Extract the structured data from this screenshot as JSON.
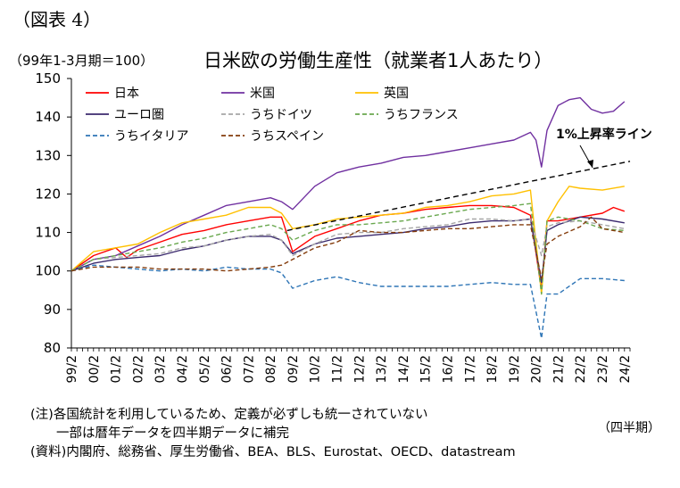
{
  "figure_label": "（図表 4）",
  "unit_label": "（99年1-3月期＝100）",
  "period_label": "（四半期）",
  "notes": [
    "(注)各国統計を利用しているため、定義が必ずしも統一されていない",
    "　　一部は暦年データを四半期データに補完",
    "(資料)内閣府、総務省、厚生労働省、BEA、BLS、Eurostat、OECD、datastream"
  ],
  "chart_data": {
    "type": "line",
    "title": "日米欧の労働生産性（就業者1人あたり）",
    "ylim": [
      80,
      150
    ],
    "yticks": [
      80,
      90,
      100,
      110,
      120,
      130,
      140,
      150
    ],
    "xlim": [
      1999.125,
      2024.375
    ],
    "xtick_labels": [
      "99/2",
      "00/2",
      "01/2",
      "02/2",
      "03/2",
      "04/2",
      "05/2",
      "06/2",
      "07/2",
      "08/2",
      "09/2",
      "10/2",
      "11/2",
      "12/2",
      "13/2",
      "14/2",
      "15/2",
      "16/2",
      "17/2",
      "18/2",
      "19/2",
      "20/2",
      "21/2",
      "22/2",
      "23/2",
      "24/2"
    ],
    "grid": false,
    "legend_position": "top-left",
    "annotation": "1%上昇率ライン",
    "series": [
      {
        "name": "日本",
        "color": "#ff0000",
        "dash": "solid",
        "x": [
          1999.125,
          2000.125,
          2001.125,
          2001.625,
          2002.125,
          2003.125,
          2004.125,
          2005.125,
          2006.125,
          2007.125,
          2008.125,
          2008.625,
          2009.125,
          2010.125,
          2011.125,
          2012.125,
          2013.125,
          2014.125,
          2015.125,
          2016.125,
          2017.125,
          2018.125,
          2019.125,
          2019.875,
          2020.375,
          2020.625,
          2021.125,
          2022.125,
          2023.125,
          2023.625,
          2024.125
        ],
        "y": [
          100,
          104,
          106,
          103.5,
          105.5,
          107.5,
          109.5,
          110.5,
          112,
          113,
          114,
          114,
          105,
          109,
          111,
          113,
          114.5,
          115,
          116,
          116.5,
          117,
          117,
          116.5,
          114.5,
          95,
          113,
          113,
          114,
          115,
          116.5,
          115.5
        ]
      },
      {
        "name": "米国",
        "color": "#7030a0",
        "dash": "solid",
        "x": [
          1999.125,
          2000.125,
          2001.125,
          2002.125,
          2003.125,
          2004.125,
          2005.125,
          2006.125,
          2007.125,
          2008.125,
          2008.625,
          2009.125,
          2010.125,
          2011.125,
          2012.125,
          2013.125,
          2014.125,
          2015.125,
          2016.125,
          2017.125,
          2018.125,
          2019.125,
          2019.875,
          2020.125,
          2020.375,
          2020.625,
          2021.125,
          2021.625,
          2022.125,
          2022.625,
          2023.125,
          2023.625,
          2024.125
        ],
        "y": [
          100,
          103,
          104,
          106.5,
          109,
          112,
          114.5,
          117,
          118,
          119,
          118,
          116,
          122,
          125.5,
          127,
          128,
          129.5,
          130,
          131,
          132,
          133,
          134,
          136,
          134,
          127,
          136.5,
          143,
          144.5,
          145,
          142,
          141,
          141.5,
          144
        ]
      },
      {
        "name": "英国",
        "color": "#ffc000",
        "dash": "solid",
        "x": [
          1999.125,
          2000.125,
          2001.125,
          2002.125,
          2003.125,
          2004.125,
          2005.125,
          2006.125,
          2007.125,
          2008.125,
          2008.625,
          2009.125,
          2010.125,
          2011.125,
          2012.125,
          2013.125,
          2014.125,
          2015.125,
          2016.125,
          2017.125,
          2018.125,
          2019.125,
          2019.875,
          2020.375,
          2020.625,
          2021.125,
          2021.625,
          2022.125,
          2023.125,
          2024.125
        ],
        "y": [
          100,
          105,
          106,
          107,
          110,
          112.5,
          113.5,
          114.5,
          116.5,
          116.5,
          115,
          111,
          112,
          113.5,
          114,
          114.5,
          115,
          116.5,
          117,
          118,
          119.5,
          120,
          121,
          94,
          113,
          118,
          122,
          121.5,
          121,
          122
        ]
      },
      {
        "name": "ユーロ圏",
        "color": "#3b2a6e",
        "dash": "solid",
        "x": [
          1999.125,
          2000.125,
          2001.125,
          2002.125,
          2003.125,
          2004.125,
          2005.125,
          2006.125,
          2007.125,
          2008.125,
          2008.625,
          2009.125,
          2010.125,
          2011.125,
          2012.125,
          2013.125,
          2014.125,
          2015.125,
          2016.125,
          2017.125,
          2018.125,
          2019.125,
          2019.875,
          2020.375,
          2020.625,
          2021.125,
          2022.125,
          2023.125,
          2024.125
        ],
        "y": [
          100,
          102,
          103,
          103.5,
          104,
          105.5,
          106.5,
          108,
          109,
          109,
          108,
          104.5,
          107,
          108.5,
          109,
          109.5,
          110,
          111,
          111.5,
          112.5,
          113,
          113,
          113.5,
          97,
          110.5,
          112,
          114,
          113.5,
          112.5
        ]
      },
      {
        "name": "うちドイツ",
        "color": "#a6a6a6",
        "dash": "5,3",
        "x": [
          1999.125,
          2000.125,
          2001.125,
          2002.125,
          2003.125,
          2004.125,
          2005.125,
          2006.125,
          2007.125,
          2008.125,
          2008.625,
          2009.125,
          2010.125,
          2011.125,
          2012.125,
          2013.125,
          2014.125,
          2015.125,
          2016.125,
          2017.125,
          2018.125,
          2019.125,
          2019.875,
          2020.375,
          2020.625,
          2021.125,
          2022.125,
          2023.125,
          2024.125
        ],
        "y": [
          100,
          103,
          103.5,
          104,
          104.5,
          106,
          106.5,
          108,
          109,
          109.5,
          108,
          104,
          107,
          109.5,
          110,
          110,
          111,
          111.5,
          112,
          113.5,
          113.5,
          113,
          113.5,
          104,
          111.5,
          112.5,
          113,
          112,
          111
        ]
      },
      {
        "name": "うちフランス",
        "color": "#6aa84f",
        "dash": "5,3",
        "x": [
          1999.125,
          2000.125,
          2001.125,
          2002.125,
          2003.125,
          2004.125,
          2005.125,
          2006.125,
          2007.125,
          2008.125,
          2008.625,
          2009.125,
          2010.125,
          2011.125,
          2012.125,
          2013.125,
          2014.125,
          2015.125,
          2016.125,
          2017.125,
          2018.125,
          2019.125,
          2019.875,
          2020.375,
          2020.625,
          2021.125,
          2022.125,
          2023.125,
          2024.125
        ],
        "y": [
          100,
          103,
          104,
          105,
          106,
          107.5,
          108.5,
          110,
          111,
          112,
          111,
          108,
          110.5,
          112,
          112,
          112.5,
          113,
          114,
          115,
          116,
          116.5,
          117,
          117.5,
          94,
          113,
          114,
          113,
          111,
          110.5
        ]
      },
      {
        "name": "うちイタリア",
        "color": "#2e75b6",
        "dash": "5,3",
        "x": [
          1999.125,
          2000.125,
          2001.125,
          2002.125,
          2003.125,
          2004.125,
          2005.125,
          2006.125,
          2007.125,
          2008.125,
          2008.625,
          2009.125,
          2010.125,
          2011.125,
          2012.125,
          2013.125,
          2014.125,
          2015.125,
          2016.125,
          2017.125,
          2018.125,
          2019.125,
          2019.875,
          2020.375,
          2020.625,
          2021.125,
          2022.125,
          2023.125,
          2024.125
        ],
        "y": [
          100,
          101.5,
          101,
          100.5,
          100,
          100.5,
          100,
          101,
          100.5,
          100.5,
          99.5,
          95.5,
          97.5,
          98.5,
          97,
          96,
          96,
          96,
          96,
          96.5,
          97,
          96.5,
          96.5,
          82.5,
          94,
          94,
          98,
          98,
          97.5
        ]
      },
      {
        "name": "うちスペイン",
        "color": "#843c0c",
        "dash": "5,3",
        "x": [
          1999.125,
          2000.125,
          2001.125,
          2002.125,
          2003.125,
          2004.125,
          2005.125,
          2006.125,
          2007.125,
          2008.125,
          2008.625,
          2009.125,
          2010.125,
          2011.125,
          2012.125,
          2013.125,
          2014.125,
          2015.125,
          2016.125,
          2017.125,
          2018.125,
          2019.125,
          2019.875,
          2020.375,
          2020.625,
          2021.125,
          2022.125,
          2022.625,
          2023.125,
          2024.125
        ],
        "y": [
          100,
          101,
          101,
          101,
          100.5,
          100.5,
          100.5,
          100,
          100.5,
          101,
          101.5,
          103,
          106,
          107.5,
          110.5,
          110,
          110,
          110.5,
          111,
          111,
          111.5,
          112,
          112,
          98,
          107,
          109,
          111.5,
          114,
          111,
          110
        ]
      }
    ],
    "reference_line": {
      "name": "1%上昇率ライン",
      "color": "#000000",
      "dash": "6,4",
      "x": [
        2008.875,
        2024.375
      ],
      "y": [
        110.5,
        128.5
      ]
    }
  }
}
